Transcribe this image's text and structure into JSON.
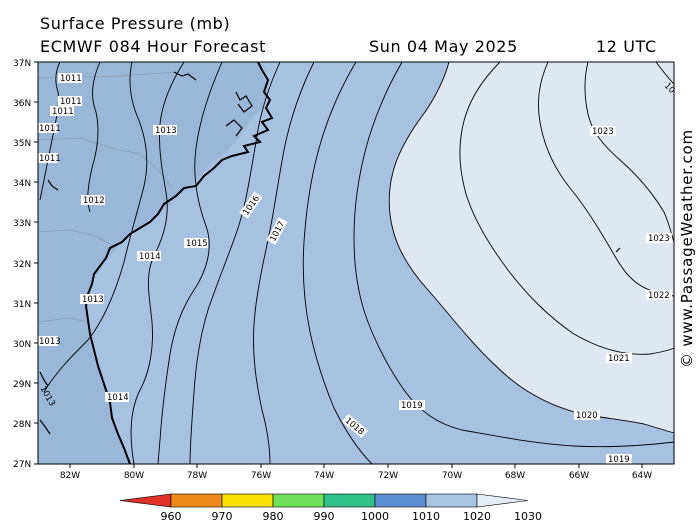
{
  "title": "Surface Pressure (mb)",
  "model_line": "ECMWF 084 Hour Forecast",
  "forecast_date": "Sun 04 May 2025",
  "forecast_time": "12 UTC",
  "credit": "© www.PassageWeather.com",
  "lat_labels": [
    "37N",
    "36N",
    "35N",
    "34N",
    "33N",
    "32N",
    "31N",
    "30N",
    "29N",
    "28N",
    "27N"
  ],
  "lon_labels": [
    "82W",
    "80W",
    "78W",
    "76W",
    "74W",
    "72W",
    "70W",
    "68W",
    "66W",
    "64W"
  ],
  "isobar_labels": [
    "1011",
    "1011",
    "1011",
    "1011",
    "1011",
    "1013",
    "1012",
    "1014",
    "1015",
    "1013",
    "1013",
    "1013",
    "1014",
    "1016",
    "1017",
    "1018",
    "1019",
    "1020",
    "1019",
    "1021",
    "1022",
    "1023",
    "1023",
    "10"
  ],
  "legend": {
    "values": [
      "960",
      "970",
      "980",
      "990",
      "1000",
      "1010",
      "1020",
      "1030"
    ],
    "colors": [
      "#e0302a",
      "#f08a1a",
      "#f8e000",
      "#6ee05a",
      "#30c08a",
      "#5a8ed0",
      "#a8c4e2",
      "#e4ecf6"
    ]
  },
  "chart_data": {
    "type": "map",
    "variable": "Surface Pressure (mb)",
    "lat_range": [
      "27N",
      "37N"
    ],
    "lon_range": [
      "83W",
      "63W"
    ],
    "contours_mb": [
      1011,
      1012,
      1013,
      1014,
      1015,
      1016,
      1017,
      1018,
      1019,
      1020,
      1021,
      1022,
      1023
    ],
    "color_scale_mb": [
      960,
      970,
      980,
      990,
      1000,
      1010,
      1020,
      1030
    ]
  }
}
